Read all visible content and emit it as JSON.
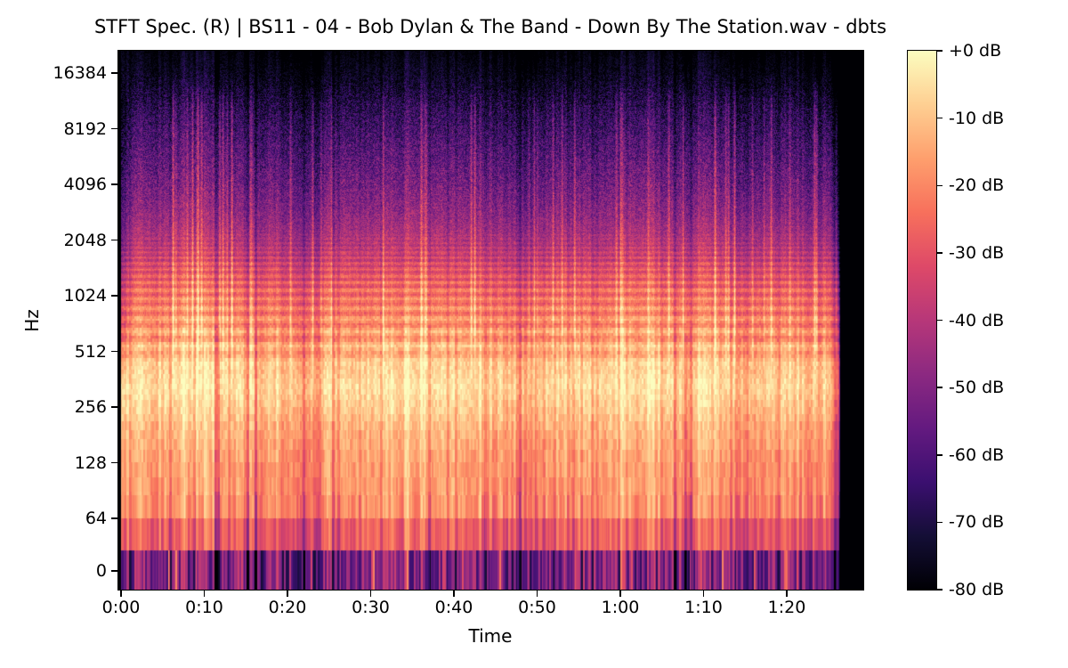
{
  "chart_data": {
    "type": "heatmap",
    "subtype": "stft_spectrogram_log_frequency",
    "title": "STFT Spec. (R) | BS11 - 04 - Bob Dylan & The Band - Down By The Station.wav - dbts",
    "xlabel": "Time",
    "ylabel": "Hz",
    "x_tick_labels": [
      "0:00",
      "0:10",
      "0:20",
      "0:30",
      "0:40",
      "0:50",
      "1:00",
      "1:10",
      "1:20"
    ],
    "x_tick_seconds": [
      0,
      10,
      20,
      30,
      40,
      50,
      60,
      70,
      80
    ],
    "xlim_seconds": [
      0,
      89.2
    ],
    "audio_duration_seconds": 86.4,
    "y_tick_labels": [
      "16384",
      "8192",
      "4096",
      "2048",
      "1024",
      "512",
      "256",
      "128",
      "64",
      "0"
    ],
    "y_tick_hz": [
      16384,
      8192,
      4096,
      2048,
      1024,
      512,
      256,
      128,
      64,
      0
    ],
    "y_scale": "log2",
    "freq_max_hz": 21620,
    "grid": false,
    "db_min": -80,
    "db_max": 0,
    "colormap": "magma",
    "colormap_stops": [
      "#000004",
      "#140e36",
      "#3b0f70",
      "#641a80",
      "#8c2981",
      "#b73779",
      "#de4968",
      "#f7705c",
      "#fe9f6d",
      "#fecf92",
      "#fcfdbf"
    ],
    "colorbar_tick_labels": [
      "+0 dB",
      "-10 dB",
      "-20 dB",
      "-30 dB",
      "-40 dB",
      "-50 dB",
      "-60 dB",
      "-70 dB",
      "-80 dB"
    ],
    "colorbar_tick_db": [
      0,
      -10,
      -20,
      -30,
      -40,
      -50,
      -60,
      -70,
      -80
    ],
    "freq_profile_db": {
      "hz": [
        26,
        40,
        52,
        64,
        90,
        130,
        200,
        260,
        330,
        420,
        520,
        700,
        950,
        1300,
        1900,
        2800,
        4200,
        6500,
        10000,
        14000,
        21620
      ],
      "db": [
        -54,
        -50,
        -30,
        -21,
        -18,
        -17,
        -13,
        -9,
        -6,
        -9,
        -14,
        -19,
        -23,
        -30,
        -40,
        -48,
        -54,
        -60,
        -67,
        -75,
        -80
      ]
    },
    "stft_bin_hz": 21.53,
    "harmonic_spacing_hz": 110
  }
}
